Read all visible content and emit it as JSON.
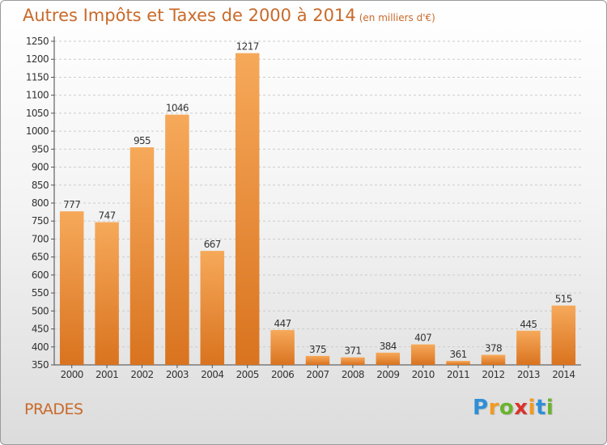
{
  "header": {
    "title": "Autres Impôts et Taxes de 2000 à 2014",
    "unit": "(en milliers d'€)"
  },
  "footer": {
    "city": "PRADES",
    "logo_letters": [
      "P",
      "r",
      "o",
      "x",
      "i",
      "t",
      "i"
    ],
    "logo_colors": [
      "#2e8fd6",
      "#f39a1f",
      "#6ab42d",
      "#d9332b",
      "#f39a1f",
      "#2e8fd6",
      "#6ab42d"
    ]
  },
  "chart_data": {
    "type": "bar",
    "title": "Autres Impôts et Taxes de 2000 à 2014",
    "subtitle": "(en milliers d'€)",
    "categories": [
      "2000",
      "2001",
      "2002",
      "2003",
      "2004",
      "2005",
      "2006",
      "2007",
      "2008",
      "2009",
      "2010",
      "2011",
      "2012",
      "2013",
      "2014"
    ],
    "values": [
      777,
      747,
      955,
      1046,
      667,
      1217,
      447,
      375,
      371,
      384,
      407,
      361,
      378,
      445,
      515
    ],
    "data_labels": [
      "777",
      "747",
      "955",
      "1046",
      "667",
      "1217",
      "447",
      "375",
      "371",
      "384",
      "407",
      "361",
      "378",
      "445",
      "515"
    ],
    "ylim": [
      350,
      1250
    ],
    "yticks": [
      350,
      400,
      450,
      500,
      550,
      600,
      650,
      700,
      750,
      800,
      850,
      900,
      950,
      1000,
      1050,
      1100,
      1150,
      1200,
      1250
    ],
    "grid": true,
    "bar_color_light": "#f6a95a",
    "bar_color_dark": "#d9731f"
  }
}
